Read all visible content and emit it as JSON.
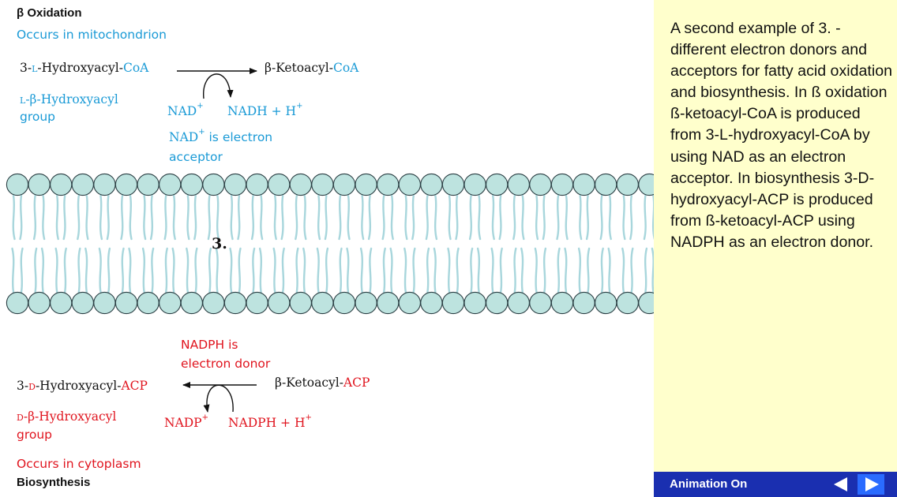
{
  "top": {
    "title": "β Oxidation",
    "location": "Occurs in mitochondrion",
    "substrate": {
      "prefix": "3-",
      "stereo": "L",
      "mid": "-Hydroxyacyl-",
      "carrier": "CoA"
    },
    "product": {
      "name": "β-Ketoacyl-",
      "carrier": "CoA"
    },
    "group_line1": {
      "stereo": "L",
      "rest": "-β-Hydroxyacyl"
    },
    "group_line2": "group",
    "cofactor_in": {
      "base": "NAD",
      "sup": "+"
    },
    "cofactor_out": {
      "base": "NADH + H",
      "sup": "+"
    },
    "acceptor_note": {
      "base": "NAD",
      "sup": "+",
      "rest": " is electron",
      "line2": "acceptor"
    }
  },
  "center_label": "3.",
  "bottom": {
    "donor_note": {
      "line1": "NADPH is",
      "line2": "electron donor"
    },
    "product": {
      "prefix": "3-",
      "stereo": "D",
      "mid": "-Hydroxyacyl-",
      "carrier": "ACP"
    },
    "substrate": {
      "name": "β-Ketoacyl-",
      "carrier": "ACP"
    },
    "group_line1": {
      "stereo": "D",
      "rest": "-β-Hydroxyacyl"
    },
    "group_line2": "group",
    "cofactor_out": {
      "base": "NADP",
      "sup": "+"
    },
    "cofactor_in": {
      "base": "NADPH + H",
      "sup": "+"
    },
    "location": "Occurs in cytoplasm",
    "title": "Biosynthesis"
  },
  "description": "A second example of 3. - different electron donors and acceptors for fatty acid oxidation and biosynthesis. In ß oxidation ß-ketoacyl-CoA is produced from 3-L-hydroxyacyl-CoA by using NAD  as an electron acceptor. In biosynthesis 3-D-hydroxyacyl-ACP is produced from ß-ketoacyl-ACP using NADPH as an electron donor.",
  "footer": {
    "animation_label": "Animation On",
    "prev_icon": "triangle-left-icon",
    "next_icon": "triangle-right-icon"
  },
  "colors": {
    "oxidation": "#1a9ad6",
    "biosynthesis": "#e0141e",
    "membrane_head": "#bde3df",
    "membrane_tail": "#a8d6dc",
    "panel_bg": "#ffffcc",
    "footer_bg": "#1a2fb0",
    "next_button": "#2a6bff"
  }
}
